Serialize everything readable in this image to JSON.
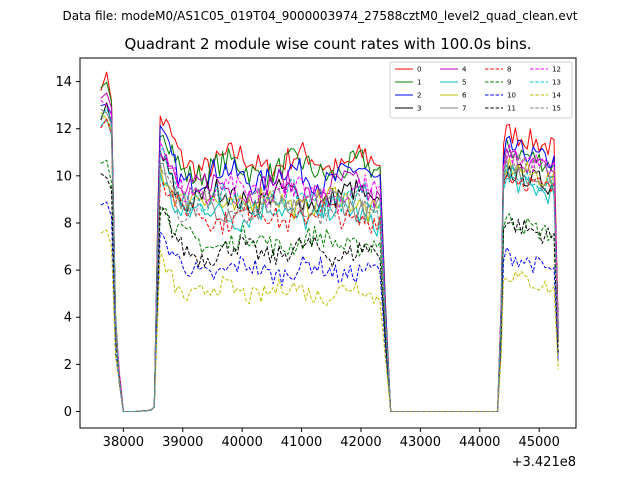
{
  "chart_data": {
    "type": "line",
    "suptitle": "Data file: modeM0/AS1C05_019T04_9000003974_27588cztM0_level2_quad_clean.evt",
    "title": "Quadrant 2 module wise count rates with 100.0s bins.",
    "xlabel": "",
    "ylabel": "",
    "x_offset_label": "+3.421e8",
    "xlim": [
      37270,
      45620
    ],
    "ylim": [
      -0.7,
      15.0
    ],
    "xticks": [
      38000,
      39000,
      40000,
      41000,
      42000,
      43000,
      44000,
      45000
    ],
    "xtick_labels": [
      "38000",
      "39000",
      "40000",
      "41000",
      "42000",
      "43000",
      "44000",
      "45000"
    ],
    "yticks": [
      0,
      2,
      4,
      6,
      8,
      10,
      12,
      14
    ],
    "ytick_labels": [
      "0",
      "2",
      "4",
      "6",
      "8",
      "10",
      "12",
      "14"
    ],
    "legend_position": "top-right",
    "legend_columns": 4,
    "series": [
      {
        "name": "0",
        "color": "#ff0000",
        "style": "solid",
        "level": 10.6,
        "seg1": 13.9,
        "seg3": 11.9
      },
      {
        "name": "1",
        "color": "#008000",
        "style": "solid",
        "level": 10.3,
        "seg1": 13.5,
        "seg3": 11.2
      },
      {
        "name": "2",
        "color": "#0000ff",
        "style": "solid",
        "level": 10.0,
        "seg1": 13.1,
        "seg3": 11.3
      },
      {
        "name": "3",
        "color": "#000000",
        "style": "solid",
        "level": 9.1,
        "seg1": 12.6,
        "seg3": 10.3
      },
      {
        "name": "4",
        "color": "#bf00bf",
        "style": "solid",
        "level": 9.5,
        "seg1": 13.5,
        "seg3": 10.9
      },
      {
        "name": "5",
        "color": "#00bfbf",
        "style": "solid",
        "level": 8.4,
        "seg1": 12.2,
        "seg3": 9.9
      },
      {
        "name": "6",
        "color": "#bfbf00",
        "style": "solid",
        "level": 8.9,
        "seg1": 12.4,
        "seg3": 10.5
      },
      {
        "name": "7",
        "color": "#808080",
        "style": "solid",
        "level": 8.8,
        "seg1": 12.8,
        "seg3": 10.4
      },
      {
        "name": "8",
        "color": "#ff0000",
        "style": "dashed",
        "level": 8.3,
        "seg1": 12.3,
        "seg3": 10.1
      },
      {
        "name": "9",
        "color": "#008000",
        "style": "dashed",
        "level": 7.2,
        "seg1": 10.6,
        "seg3": 8.2
      },
      {
        "name": "10",
        "color": "#0000ff",
        "style": "dashed",
        "level": 6.0,
        "seg1": 8.6,
        "seg3": 6.7
      },
      {
        "name": "11",
        "color": "#000000",
        "style": "dashed",
        "level": 6.8,
        "seg1": 9.9,
        "seg3": 8.1
      },
      {
        "name": "12",
        "color": "#ff00ff",
        "style": "dashed",
        "level": 9.3,
        "seg1": 13.2,
        "seg3": 11.0
      },
      {
        "name": "13",
        "color": "#00bfbf",
        "style": "dashed",
        "level": 9.0,
        "seg1": 12.7,
        "seg3": 10.2
      },
      {
        "name": "14",
        "color": "#bfbf00",
        "style": "dashed",
        "level": 5.1,
        "seg1": 7.5,
        "seg3": 5.9
      },
      {
        "name": "15",
        "color": "#808080",
        "style": "dashed",
        "level": 8.7,
        "seg1": 12.5,
        "seg3": 10.7
      }
    ],
    "structure": {
      "bin_seconds": 100,
      "seg1_x": [
        37620,
        37720,
        37800
      ],
      "drop_x": [
        37870,
        37930,
        38000
      ],
      "flat_zero_x": [
        38000,
        38520
      ],
      "seg2_x": [
        38580,
        42350
      ],
      "gap_x": [
        42500,
        44300
      ],
      "seg3_x": [
        44400,
        45320
      ]
    }
  }
}
